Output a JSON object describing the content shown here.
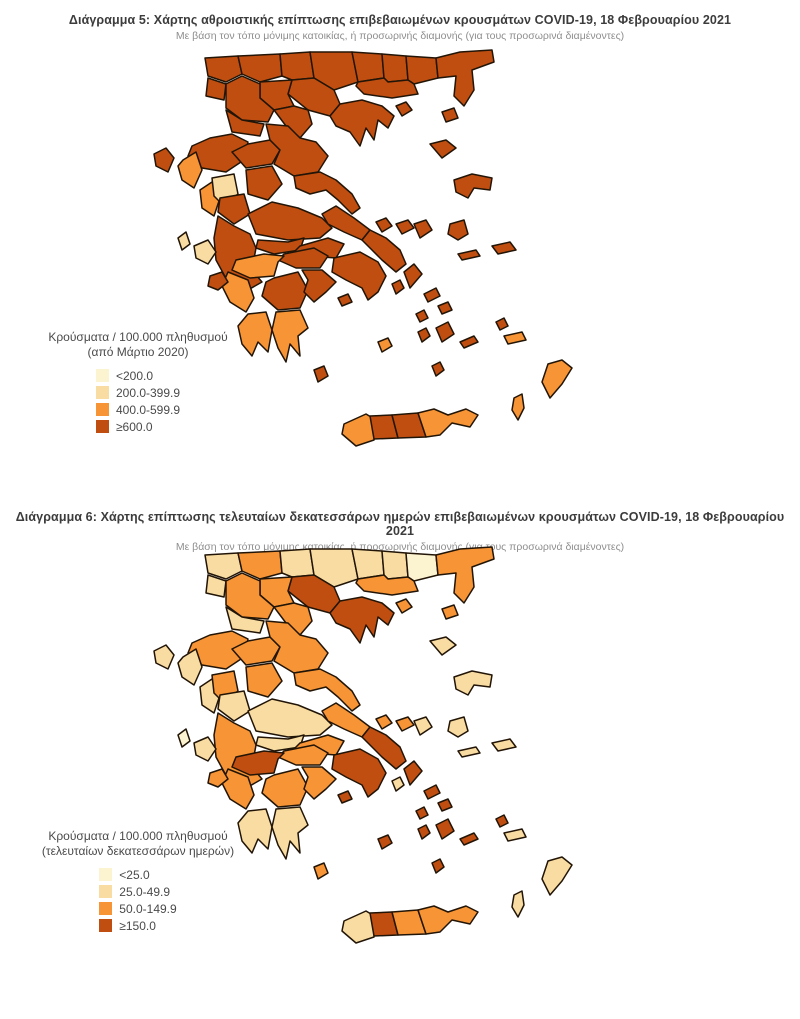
{
  "colors": {
    "background": "#FFFFFF",
    "border": "#221507",
    "title_text": "#3C3C3C",
    "subtitle_text": "#8E8E8E",
    "legend_text": "#4A4A4A",
    "cat1": "#FCF4D1",
    "cat2": "#F8DCA2",
    "cat3": "#F79435",
    "cat4": "#C04E11"
  },
  "maps": [
    {
      "title": "Διάγραμμα 5: Χάρτης αθροιστικής επίπτωσης επιβεβαιωμένων κρουσμάτων COVID-19, 18 Φεβρουαρίου 2021",
      "subtitle": "Με βάση τον τόπο μόνιμης κατοικίας, ή προσωρινής διαμονής (για τους προσωρινά διαμένοντες)",
      "legend": {
        "title_line1": "Κρούσματα / 100.000 πληθυσμού",
        "title_line2": "(από Μάρτιο 2020)",
        "items": [
          {
            "label": "<200.0",
            "color_key": "cat1"
          },
          {
            "label": "200.0-399.9",
            "color_key": "cat2"
          },
          {
            "label": "400.0-599.9",
            "color_key": "cat3"
          },
          {
            "label": "≥600.0",
            "color_key": "cat4"
          }
        ]
      }
    },
    {
      "title": "Διάγραμμα 6: Χάρτης επίπτωσης τελευταίων δεκατεσσάρων ημερών επιβεβαιωμένων κρουσμάτων COVID-19, 18 Φεβρουαρίου 2021",
      "subtitle": "Με βάση τον τόπο μόνιμης κατοικίας, ή προσωρινής διαμονής (για τους προσωρινά διαμένοντες)",
      "legend": {
        "title_line1": "Κρούσματα / 100.000 πληθυσμού",
        "title_line2": "(τελευταίων δεκατεσσάρων ημερών)",
        "items": [
          {
            "label": "<25.0",
            "color_key": "cat1"
          },
          {
            "label": "25.0-49.9",
            "color_key": "cat2"
          },
          {
            "label": "50.0-149.9",
            "color_key": "cat3"
          },
          {
            "label": "≥150.0",
            "color_key": "cat4"
          }
        ]
      }
    }
  ],
  "chart_data": [
    {
      "type": "choropleth_map",
      "title": "Διάγραμμα 5: Χάρτης αθροιστικής επίπτωσης επιβεβαιωμένων κρουσμάτων COVID-19, 18 Φεβρουαρίου 2021",
      "subtitle": "Με βάση τον τόπο μόνιμης κατοικίας, ή προσωρινής διαμονής (για τους προσωρινά διαμένοντες)",
      "metric": "Κρούσματα / 100.000 πληθυσμού (από Μάρτιο 2020)",
      "area": "Ελλάδα (περιφερειακές ενότητες)",
      "bins": [
        "<200.0",
        "200.0-399.9",
        "400.0-599.9",
        "≥600.0"
      ],
      "bin_color_keys": [
        "cat1",
        "cat2",
        "cat3",
        "cat4"
      ],
      "region_values": {
        "florina": "cat4",
        "pella": "cat4",
        "kilkis": "cat4",
        "serres": "cat4",
        "drama": "cat4",
        "xanthi": "cat4",
        "rhodopi": "cat4",
        "evros": "cat4",
        "kavala": "cat4",
        "thasos": "cat4",
        "samothraki": "cat4",
        "thessaloniki": "cat4",
        "chalkidiki": "cat4",
        "imathia": "cat4",
        "pieria": "cat4",
        "kastoria": "cat4",
        "kozani": "cat4",
        "grevena": "cat4",
        "ioannina": "cat4",
        "thesprotia": "cat3",
        "preveza": "cat3",
        "arta": "cat2",
        "corfu": "cat4",
        "lefkada": "cat2",
        "trikala": "cat4",
        "larissa": "cat4",
        "karditsa": "cat4",
        "magnisia": "cat4",
        "sporades_a": "cat4",
        "sporades_b": "cat4",
        "skyros": "cat4",
        "evrytania": "cat4",
        "fthiotida": "cat4",
        "fokida": "cat4",
        "etoloakarnania": "cat4",
        "viotia": "cat4",
        "attica": "cat4",
        "evia_north": "cat4",
        "evia_south": "cat4",
        "corinthia": "cat4",
        "achaia": "cat3",
        "elis": "cat3",
        "arcadia": "cat4",
        "argolida": "cat4",
        "messinia": "cat3",
        "laconia": "cat3",
        "kythira": "cat4",
        "kefalonia": "cat2",
        "zakynthos": "cat4",
        "aegina": "cat4",
        "kea": "cat4",
        "andros": "cat4",
        "tinos": "cat4",
        "mykonos": "cat4",
        "syros": "cat4",
        "paros": "cat4",
        "naxos": "cat4",
        "milos": "cat3",
        "santorini": "cat4",
        "amorgos": "cat4",
        "limnos": "cat4",
        "lesvos": "cat4",
        "chios": "cat4",
        "samos": "cat4",
        "ikaria": "cat4",
        "kalymnos": "cat4",
        "kos": "cat3",
        "rhodes": "cat3",
        "karpathos": "cat3",
        "chania": "cat3",
        "rethymno": "cat4",
        "heraklion": "cat4",
        "lasithi": "cat3"
      }
    },
    {
      "type": "choropleth_map",
      "title": "Διάγραμμα 6: Χάρτης επίπτωσης τελευταίων δεκατεσσάρων ημερών επιβεβαιωμένων κρουσμάτων COVID-19, 18 Φεβρουαρίου 2021",
      "subtitle": "Με βάση τον τόπο μόνιμης κατοικίας, ή προσωρινής διαμονής (για τους προσωρινά διαμένοντες)",
      "metric": "Κρούσματα / 100.000 πληθυσμού (τελευταίων δεκατεσσάρων ημερών)",
      "area": "Ελλάδα (περιφερειακές ενότητες)",
      "bins": [
        "<25.0",
        "25.0-49.9",
        "50.0-149.9",
        "≥150.0"
      ],
      "bin_color_keys": [
        "cat1",
        "cat2",
        "cat3",
        "cat4"
      ],
      "region_values": {
        "florina": "cat2",
        "pella": "cat3",
        "kilkis": "cat2",
        "serres": "cat2",
        "drama": "cat2",
        "xanthi": "cat2",
        "rhodopi": "cat1",
        "evros": "cat3",
        "kavala": "cat3",
        "thasos": "cat3",
        "samothraki": "cat3",
        "thessaloniki": "cat4",
        "chalkidiki": "cat4",
        "imathia": "cat3",
        "pieria": "cat3",
        "kastoria": "cat2",
        "kozani": "cat3",
        "grevena": "cat2",
        "ioannina": "cat3",
        "thesprotia": "cat2",
        "preveza": "cat2",
        "arta": "cat3",
        "corfu": "cat2",
        "lefkada": "cat1",
        "trikala": "cat3",
        "larissa": "cat3",
        "karditsa": "cat3",
        "magnisia": "cat3",
        "sporades_a": "cat3",
        "sporades_b": "cat3",
        "skyros": "cat2",
        "evrytania": "cat2",
        "fthiotida": "cat2",
        "fokida": "cat2",
        "etoloakarnania": "cat3",
        "viotia": "cat3",
        "attica": "cat4",
        "evia_north": "cat3",
        "evia_south": "cat4",
        "corinthia": "cat3",
        "achaia": "cat4",
        "elis": "cat3",
        "arcadia": "cat3",
        "argolida": "cat3",
        "messinia": "cat2",
        "laconia": "cat2",
        "kythira": "cat3",
        "kefalonia": "cat2",
        "zakynthos": "cat3",
        "aegina": "cat4",
        "kea": "cat2",
        "andros": "cat4",
        "tinos": "cat4",
        "mykonos": "cat4",
        "syros": "cat4",
        "paros": "cat4",
        "naxos": "cat4",
        "milos": "cat4",
        "santorini": "cat4",
        "amorgos": "cat4",
        "limnos": "cat2",
        "lesvos": "cat2",
        "chios": "cat2",
        "samos": "cat2",
        "ikaria": "cat2",
        "kalymnos": "cat4",
        "kos": "cat2",
        "rhodes": "cat2",
        "karpathos": "cat2",
        "chania": "cat2",
        "rethymno": "cat4",
        "heraklion": "cat3",
        "lasithi": "cat3"
      }
    }
  ]
}
